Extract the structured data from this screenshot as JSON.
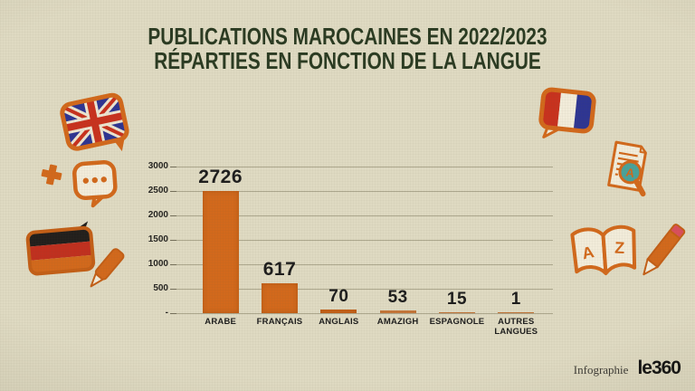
{
  "page": {
    "background_color": "#dfdac2",
    "accent_orange": "#d2691c",
    "title_color": "#2b3b22"
  },
  "title": {
    "line1": "PUBLICATIONS MAROCAINES EN 2022/2023",
    "line2": "RÉPARTIES EN FONCTION DE LA LANGUE"
  },
  "chart_data": {
    "type": "bar",
    "title": "Publications marocaines en 2022/2023 réparties en fonction de la langue",
    "categories": [
      "ARABE",
      "FRANÇAIS",
      "ANGLAIS",
      "AMAZIGH",
      "ESPAGNOLE",
      "AUTRES LANGUES"
    ],
    "values": [
      2726,
      617,
      70,
      53,
      15,
      1
    ],
    "xlabel": "",
    "ylabel": "",
    "ylim": [
      0,
      3000
    ],
    "ytick_labels": [
      "3000",
      "2500",
      "2000",
      "1500",
      "1000",
      "500",
      "-"
    ],
    "grid": true,
    "legend_position": "none",
    "bar_color": "#d2691c",
    "value_label_color": "#1d1d1d"
  },
  "footer": {
    "credit_label": "Infographie",
    "brand": "le360"
  },
  "decorations": {
    "icons": [
      "uk-flag-speech-bubble-icon",
      "plus-sparkle-icon",
      "chat-dots-bubble-icon",
      "german-flag-speech-bubble-icon",
      "marker-pen-icon",
      "french-flag-speech-bubble-icon",
      "document-magnifier-icon",
      "open-book-a-z-icon",
      "pencil-icon"
    ]
  }
}
